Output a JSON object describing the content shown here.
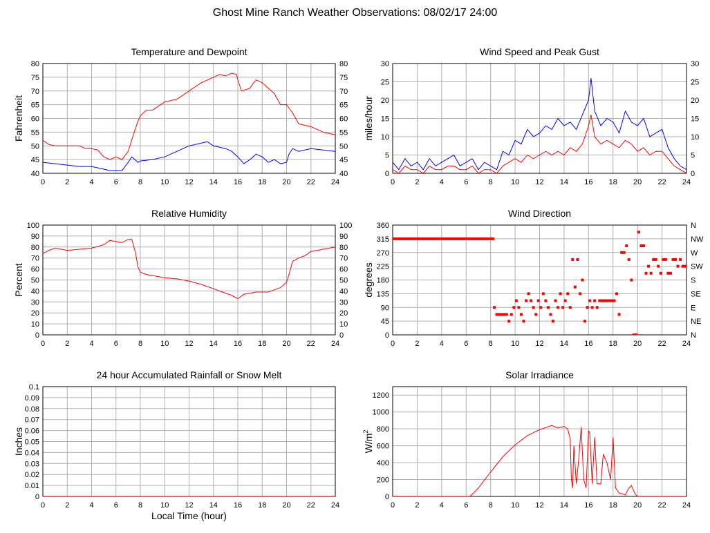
{
  "page": {
    "title": "Ghost Mine Ranch Weather Observations: 08/02/17 24:00",
    "xlabel_bottom": "Local Time (hour)"
  },
  "chart_data": [
    {
      "id": "temp",
      "type": "line",
      "title": "Temperature and Dewpoint",
      "ylabel": "Fahrenheit",
      "xlim": [
        0,
        24
      ],
      "ylim": [
        40,
        80
      ],
      "xticks": [
        0,
        2,
        4,
        6,
        8,
        10,
        12,
        14,
        16,
        18,
        20,
        22,
        24
      ],
      "yticks": [
        40,
        45,
        50,
        55,
        60,
        65,
        70,
        75,
        80
      ],
      "right_ticks": [
        "40",
        "45",
        "50",
        "55",
        "60",
        "65",
        "70",
        "75",
        "80"
      ],
      "grid": true,
      "series": [
        {
          "color": "#ff0000",
          "x": [
            0,
            0.5,
            1,
            2,
            3,
            3.5,
            4,
            4.5,
            5,
            5.5,
            6,
            6.5,
            7,
            7.5,
            7.8,
            8,
            8.5,
            9,
            10,
            11,
            12,
            13,
            14,
            14.5,
            15,
            15.5,
            15.9,
            16,
            16.3,
            17,
            17.3,
            17.5,
            18,
            18.5,
            19,
            19.5,
            20,
            20.5,
            21,
            22,
            23,
            24
          ],
          "y": [
            52,
            50.5,
            50,
            50,
            50,
            49,
            49,
            48.5,
            46,
            45,
            46,
            45,
            48,
            55,
            59,
            61,
            63,
            63,
            66,
            67,
            70,
            73,
            75,
            76,
            75.5,
            76.5,
            76,
            74,
            70,
            71,
            73,
            74,
            73,
            71,
            69,
            65,
            65,
            62,
            58,
            57,
            55,
            54
          ]
        },
        {
          "color": "#0000ff",
          "x": [
            0,
            1,
            2,
            3,
            4,
            4.5,
            5,
            5.5,
            6,
            6.5,
            7,
            7.3,
            7.8,
            8,
            9,
            10,
            11,
            12,
            13,
            13.5,
            14,
            15,
            15.5,
            16,
            16.5,
            17,
            17.5,
            18,
            18.5,
            19,
            19.5,
            20,
            20.2,
            20.5,
            21,
            22,
            23,
            24
          ],
          "y": [
            44,
            43.5,
            43,
            42.5,
            42.5,
            42,
            41.5,
            41,
            41,
            41,
            44,
            46,
            44,
            44.5,
            45,
            46,
            48,
            50,
            51,
            51.5,
            50,
            49,
            48,
            46,
            43.5,
            45,
            47,
            46,
            44,
            45,
            43.5,
            44,
            47,
            49,
            48,
            49,
            48.5,
            48
          ]
        }
      ]
    },
    {
      "id": "wind",
      "type": "line",
      "title": "Wind Speed and Peak Gust",
      "ylabel": "miles/hour",
      "xlim": [
        0,
        24
      ],
      "ylim": [
        0,
        30
      ],
      "xticks": [
        0,
        2,
        4,
        6,
        8,
        10,
        12,
        14,
        16,
        18,
        20,
        22,
        24
      ],
      "yticks": [
        0,
        5,
        10,
        15,
        20,
        25,
        30
      ],
      "right_ticks": [
        "0",
        "5",
        "10",
        "15",
        "20",
        "25",
        "30"
      ],
      "grid": true,
      "series": [
        {
          "color": "#0000ff",
          "x": [
            0,
            0.5,
            1,
            1.5,
            2,
            2.5,
            3,
            3.5,
            4,
            4.5,
            5,
            5.5,
            6,
            6.5,
            7,
            7.5,
            8,
            8.5,
            9,
            9.5,
            10,
            10.5,
            11,
            11.5,
            12,
            12.5,
            13,
            13.5,
            14,
            14.5,
            15,
            15.5,
            16,
            16.2,
            16.5,
            17,
            17.5,
            18,
            18.5,
            19,
            19.5,
            20,
            20.5,
            21,
            21.5,
            22,
            22.5,
            23,
            23.5,
            24
          ],
          "y": [
            3,
            1,
            4,
            2,
            3,
            1,
            4,
            2,
            3,
            4,
            5,
            2,
            3,
            4,
            1,
            3,
            2,
            1,
            6,
            5,
            9,
            8,
            12,
            10,
            11,
            13,
            12,
            15,
            13,
            14,
            12,
            16,
            20,
            26,
            17,
            13,
            15,
            14,
            11,
            17,
            14,
            13,
            15,
            10,
            11,
            12,
            7,
            4,
            2,
            1
          ]
        },
        {
          "color": "#ff0000",
          "x": [
            0,
            0.5,
            1,
            1.5,
            2,
            2.5,
            3,
            3.5,
            4,
            4.5,
            5,
            5.5,
            6,
            6.5,
            7,
            7.5,
            8,
            8.5,
            9,
            9.5,
            10,
            10.5,
            11,
            11.5,
            12,
            12.5,
            13,
            13.5,
            14,
            14.5,
            15,
            15.5,
            16,
            16.2,
            16.5,
            17,
            17.5,
            18,
            18.5,
            19,
            19.5,
            20,
            20.5,
            21,
            21.5,
            22,
            22.5,
            23,
            23.5,
            24
          ],
          "y": [
            1,
            0,
            2,
            1,
            1,
            0,
            2,
            1,
            1,
            2,
            2,
            1,
            1,
            2,
            0,
            1,
            1,
            0,
            2,
            3,
            4,
            3,
            5,
            4,
            5,
            6,
            5,
            6,
            5,
            7,
            6,
            8,
            13,
            16,
            10,
            8,
            9,
            8,
            7,
            9,
            8,
            6,
            7,
            5,
            6,
            6,
            4,
            2,
            1,
            0
          ]
        }
      ]
    },
    {
      "id": "rh",
      "type": "line",
      "title": "Relative Humidity",
      "ylabel": "Percent",
      "xlim": [
        0,
        24
      ],
      "ylim": [
        0,
        100
      ],
      "xticks": [
        0,
        2,
        4,
        6,
        8,
        10,
        12,
        14,
        16,
        18,
        20,
        22,
        24
      ],
      "yticks": [
        0,
        10,
        20,
        30,
        40,
        50,
        60,
        70,
        80,
        90,
        100
      ],
      "right_ticks": [
        "0",
        "10",
        "20",
        "30",
        "40",
        "50",
        "60",
        "70",
        "80",
        "90",
        "100"
      ],
      "grid": true,
      "series": [
        {
          "color": "#ff0000",
          "x": [
            0,
            0.5,
            1,
            2,
            3,
            4,
            5,
            5.5,
            6,
            6.5,
            7,
            7.3,
            7.6,
            7.8,
            8,
            8.5,
            9,
            10,
            11,
            12,
            13,
            14,
            15,
            15.5,
            16,
            16.5,
            17,
            17.5,
            18,
            18.5,
            19,
            19.5,
            20,
            20.2,
            20.5,
            21,
            21.5,
            22,
            22.5,
            23,
            24
          ],
          "y": [
            74,
            77,
            79,
            77,
            78,
            79,
            82,
            86,
            85,
            84,
            87,
            87,
            75,
            62,
            57,
            55,
            54,
            52,
            51,
            49,
            46,
            42,
            38,
            36,
            33,
            37,
            38,
            39,
            39,
            39,
            41,
            43,
            48,
            55,
            67,
            70,
            72,
            76,
            77,
            78,
            80
          ]
        }
      ]
    },
    {
      "id": "dir",
      "type": "scatter",
      "title": "Wind Direction",
      "ylabel": "degrees",
      "xlim": [
        0,
        24
      ],
      "ylim": [
        0,
        360
      ],
      "xticks": [
        0,
        2,
        4,
        6,
        8,
        10,
        12,
        14,
        16,
        18,
        20,
        22,
        24
      ],
      "yticks": [
        0,
        45,
        90,
        135,
        180,
        225,
        270,
        315,
        360
      ],
      "right_ticks": [
        "N",
        "NE",
        "E",
        "SE",
        "S",
        "SW",
        "W",
        "NW",
        "N"
      ],
      "grid": true,
      "series": [
        {
          "color": "#ff0000",
          "x": [
            0,
            0.2,
            0.4,
            0.6,
            0.8,
            1,
            1.2,
            1.4,
            1.6,
            1.8,
            2,
            2.2,
            2.4,
            2.6,
            2.8,
            3,
            3.2,
            3.4,
            3.6,
            3.8,
            4,
            4.2,
            4.4,
            4.6,
            4.8,
            5,
            5.2,
            5.4,
            5.6,
            5.8,
            6,
            6.2,
            6.4,
            6.6,
            6.8,
            7,
            7.2,
            7.4,
            7.6,
            7.8,
            8,
            8.2,
            8.3,
            8.5,
            8.7,
            8.9,
            9.1,
            9.3,
            9.5,
            9.7,
            9.9,
            10.1,
            10.3,
            10.5,
            10.7,
            10.9,
            11.1,
            11.3,
            11.5,
            11.7,
            11.9,
            12.1,
            12.3,
            12.5,
            12.7,
            12.9,
            13.1,
            13.3,
            13.5,
            13.7,
            13.9,
            14.1,
            14.3,
            14.5,
            14.7,
            14.9,
            15.1,
            15.3,
            15.5,
            15.7,
            15.9,
            16.1,
            16.3,
            16.5,
            16.7,
            16.9,
            17.1,
            17.3,
            17.5,
            17.7,
            17.9,
            18.1,
            18.3,
            18.5,
            18.7,
            18.9,
            19.1,
            19.3,
            19.5,
            19.7,
            19.9,
            20.1,
            20.3,
            20.5,
            20.7,
            20.9,
            21.1,
            21.3,
            21.5,
            21.7,
            21.9,
            22.1,
            22.3,
            22.5,
            22.7,
            22.9,
            23.1,
            23.3,
            23.5,
            23.7,
            23.9
          ],
          "y": [
            315,
            315,
            315,
            315,
            315,
            315,
            315,
            315,
            315,
            315,
            315,
            315,
            315,
            315,
            315,
            315,
            315,
            315,
            315,
            315,
            315,
            315,
            315,
            315,
            315,
            315,
            315,
            315,
            315,
            315,
            315,
            315,
            315,
            315,
            315,
            315,
            315,
            315,
            315,
            315,
            315,
            315,
            90,
            67,
            67,
            67,
            67,
            67,
            45,
            67,
            90,
            112,
            90,
            67,
            45,
            112,
            135,
            112,
            90,
            67,
            112,
            90,
            135,
            112,
            90,
            67,
            45,
            112,
            90,
            135,
            90,
            112,
            135,
            90,
            247,
            157,
            247,
            135,
            180,
            45,
            90,
            112,
            90,
            112,
            90,
            112,
            112,
            112,
            112,
            112,
            112,
            112,
            135,
            67,
            270,
            270,
            292,
            247,
            180,
            0,
            0,
            337,
            292,
            292,
            202,
            225,
            202,
            247,
            247,
            225,
            202,
            247,
            247,
            202,
            202,
            247,
            247,
            225,
            247,
            225,
            225
          ]
        }
      ]
    },
    {
      "id": "rain",
      "type": "line",
      "title": "24 hour Accumulated Rainfall or Snow Melt",
      "ylabel": "Inches",
      "xlim": [
        0,
        24
      ],
      "ylim": [
        0,
        0.1
      ],
      "xticks": [
        0,
        2,
        4,
        6,
        8,
        10,
        12,
        14,
        16,
        18,
        20,
        22,
        24
      ],
      "yticks": [
        0,
        0.01,
        0.02,
        0.03,
        0.04,
        0.05,
        0.06,
        0.07,
        0.08,
        0.09,
        0.1
      ],
      "right_ticks": [],
      "grid": true,
      "series": [
        {
          "color": "#ff0000",
          "x": [
            0,
            24
          ],
          "y": [
            0,
            0
          ]
        }
      ]
    },
    {
      "id": "solar",
      "type": "line",
      "title": "Solar Irradiance",
      "ylabel": "W/m2",
      "xlim": [
        0,
        24
      ],
      "ylim": [
        0,
        1300
      ],
      "xticks": [
        0,
        2,
        4,
        6,
        8,
        10,
        12,
        14,
        16,
        18,
        20,
        22,
        24
      ],
      "yticks": [
        0,
        200,
        400,
        600,
        800,
        1000,
        1200
      ],
      "right_ticks": [],
      "grid": true,
      "series": [
        {
          "color": "#ff0000",
          "x": [
            0,
            6.3,
            6.6,
            7,
            8,
            9,
            10,
            11,
            12,
            13,
            13.5,
            14,
            14.3,
            14.5,
            14.6,
            14.7,
            14.8,
            15,
            15.2,
            15.4,
            15.6,
            15.8,
            16,
            16.1,
            16.3,
            16.5,
            16.7,
            17,
            17.2,
            17.5,
            17.8,
            18,
            18.2,
            18.5,
            19,
            19.3,
            19.5,
            19.8,
            20,
            24
          ],
          "y": [
            0,
            0,
            40,
            100,
            290,
            470,
            610,
            720,
            790,
            840,
            810,
            830,
            800,
            680,
            200,
            100,
            600,
            150,
            450,
            820,
            200,
            100,
            780,
            750,
            150,
            700,
            150,
            150,
            500,
            400,
            200,
            700,
            100,
            40,
            20,
            100,
            130,
            30,
            0,
            0
          ]
        }
      ]
    }
  ]
}
